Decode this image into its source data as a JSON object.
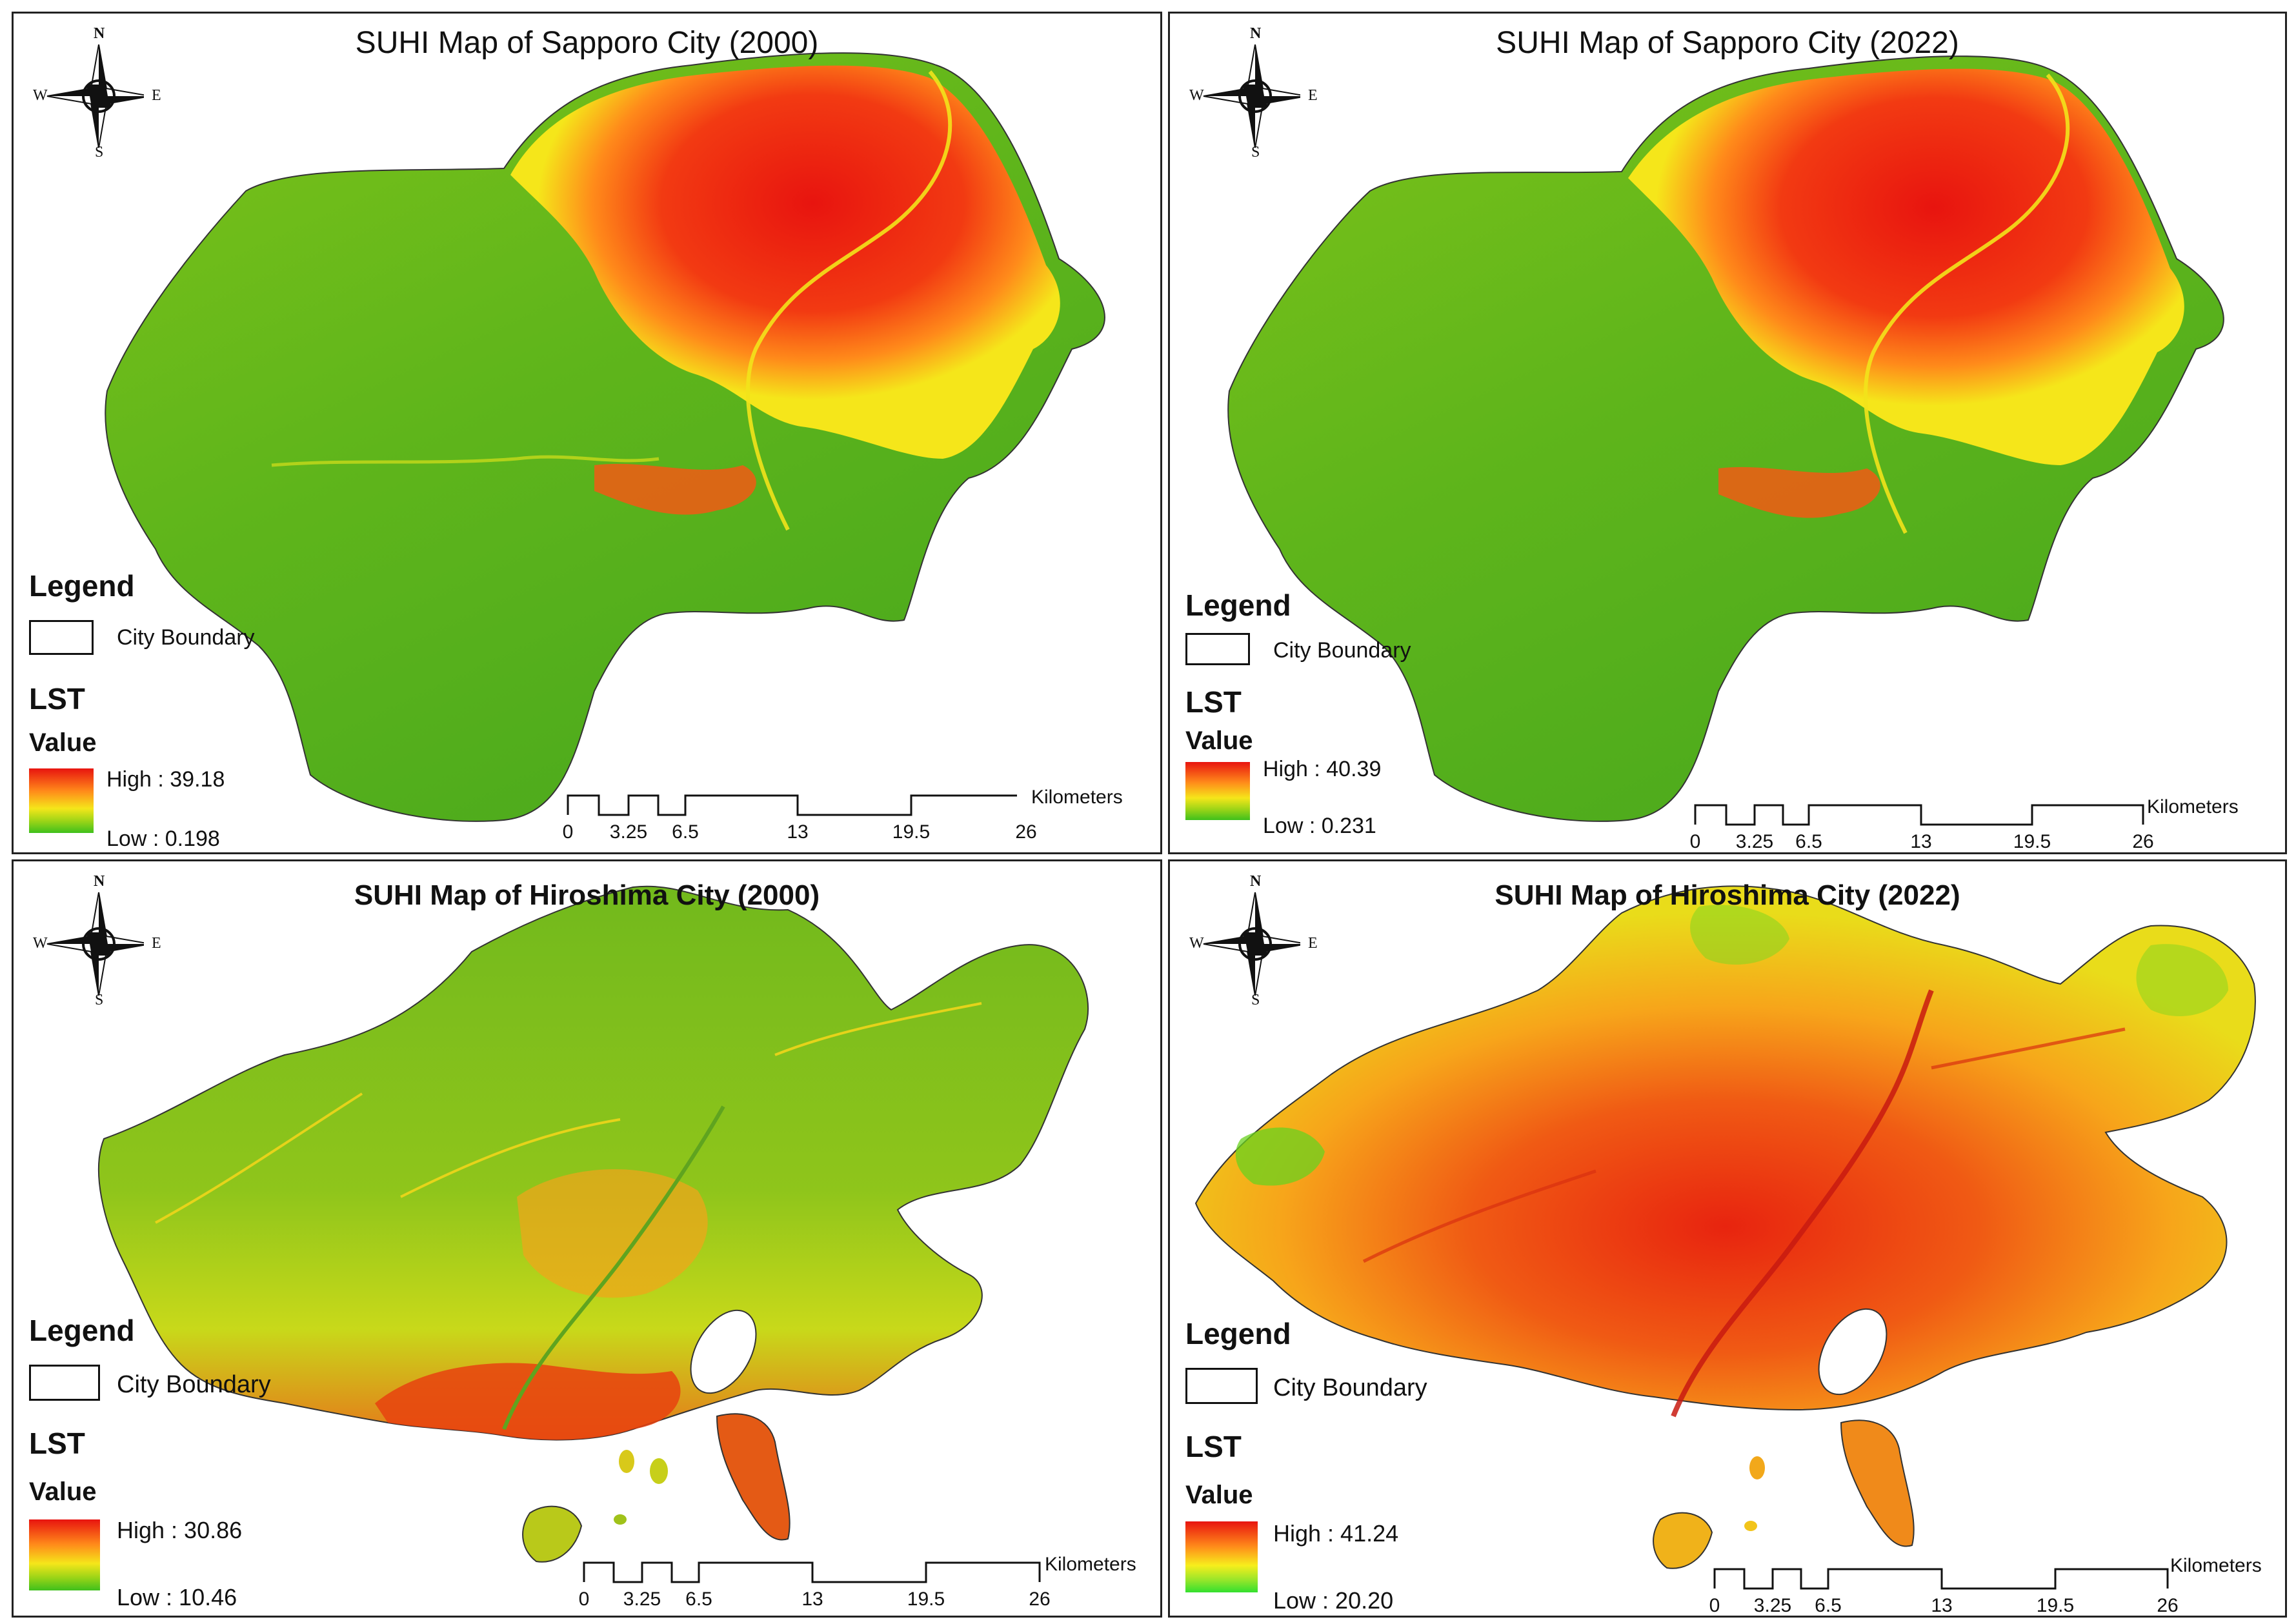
{
  "panels": [
    {
      "title": "SUHI Map of  Sapporo City (2000)",
      "compass": {
        "n": "N",
        "s": "S",
        "w": "W",
        "e": "E"
      },
      "legend": {
        "heading": "Legend",
        "boundary_label": "City Boundary",
        "layer": "LST",
        "value_heading": "Value",
        "high": "High : 39.18",
        "low": "Low : 0.198"
      },
      "scale": {
        "unit": "Kilometers",
        "ticks": [
          "0",
          "3.25",
          "6.5",
          "13",
          "19.5",
          "26"
        ]
      }
    },
    {
      "title": "SUHI Map of  Sapporo City (2022)",
      "compass": {
        "n": "N",
        "s": "S",
        "w": "W",
        "e": "E"
      },
      "legend": {
        "heading": "Legend",
        "boundary_label": "City Boundary",
        "layer": "LST",
        "value_heading": "Value",
        "high": "High : 40.39",
        "low": "Low : 0.231"
      },
      "scale": {
        "unit": "Kilometers",
        "ticks": [
          "0",
          "3.25",
          "6.5",
          "13",
          "19.5",
          "26"
        ]
      }
    },
    {
      "title": "SUHI Map of  Hiroshima City (2000)",
      "compass": {
        "n": "N",
        "s": "S",
        "w": "W",
        "e": "E"
      },
      "legend": {
        "heading": "Legend",
        "boundary_label": "City Boundary",
        "layer": "LST",
        "value_heading": "Value",
        "high": "High : 30.86",
        "low": "Low : 10.46"
      },
      "scale": {
        "unit": "Kilometers",
        "ticks": [
          "0",
          "3.25",
          "6.5",
          "13",
          "19.5",
          "26"
        ]
      }
    },
    {
      "title": "SUHI Map of  Hiroshima City (2022)",
      "compass": {
        "n": "N",
        "s": "S",
        "w": "W",
        "e": "E"
      },
      "legend": {
        "heading": "Legend",
        "boundary_label": "City Boundary",
        "layer": "LST",
        "value_heading": "Value",
        "high": "High : 41.24",
        "low": "Low : 20.20"
      },
      "scale": {
        "unit": "Kilometers",
        "ticks": [
          "0",
          "3.25",
          "6.5",
          "13",
          "19.5",
          "26"
        ]
      }
    }
  ],
  "colors": {
    "high": "#e8140f",
    "mid_orange": "#ff8a1a",
    "mid_yellow": "#f5e61a",
    "low_green": "#3fc01c"
  }
}
